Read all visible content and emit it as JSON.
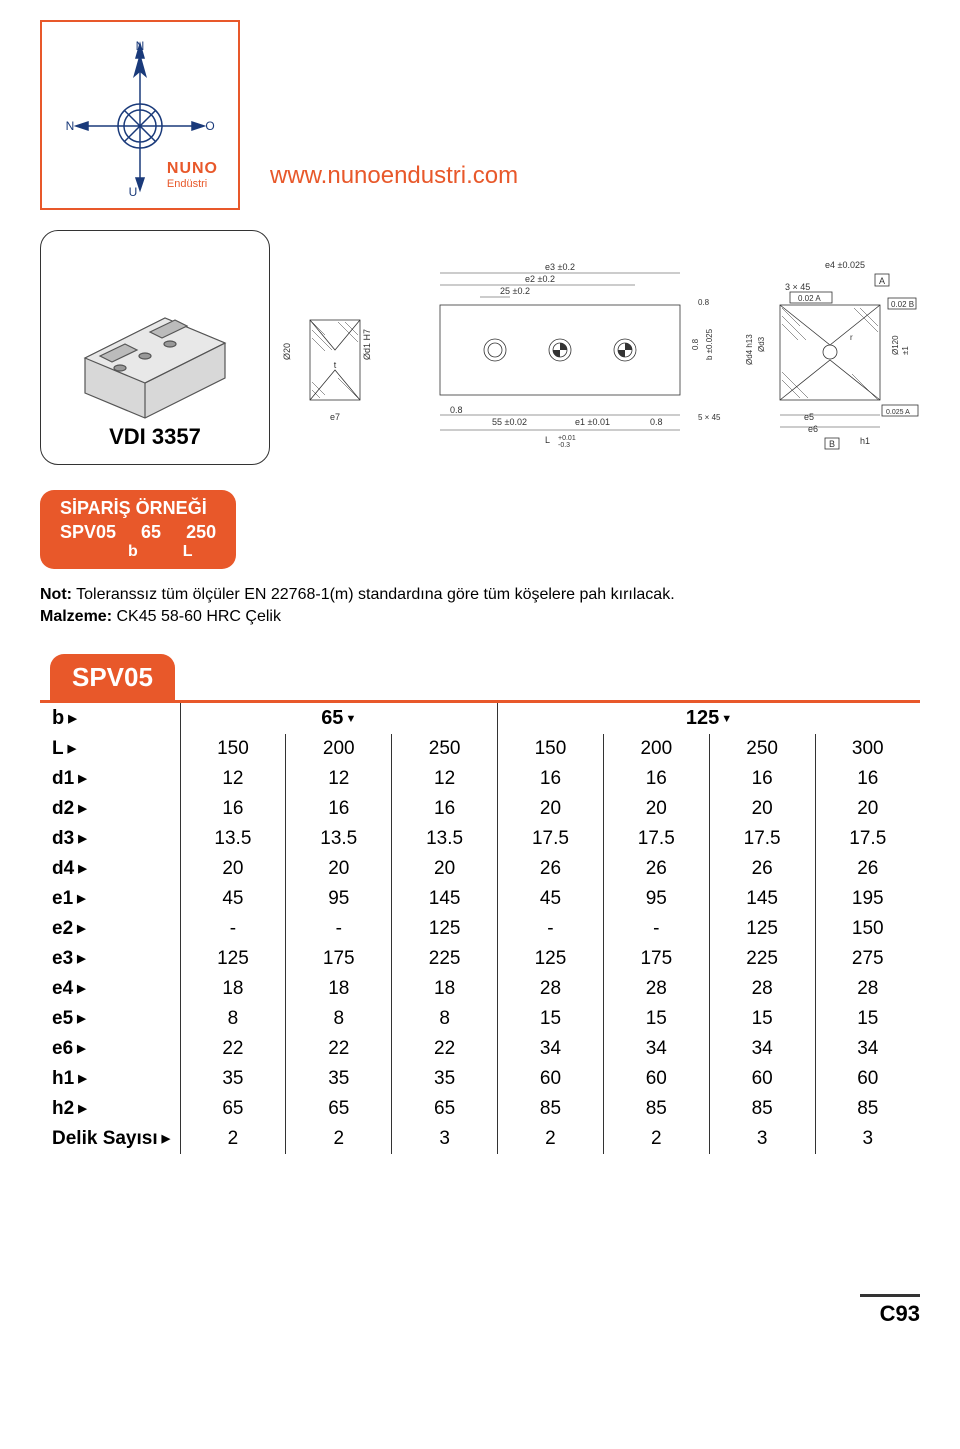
{
  "logo": {
    "brand": "NUNO",
    "sub": "Endüstri",
    "north": "N",
    "south": "U",
    "east": "O",
    "west": "N",
    "color": "#e8582a",
    "line_color": "#1a3a7a"
  },
  "website": "www.nunoendustri.com",
  "vdi_label": "VDI 3357",
  "drawing_labels": {
    "e3": "e3 ±0.2",
    "e2": "e2 ±0.2",
    "t25": "25 ±0.2",
    "od1": "Ød1 H7",
    "o20": "Ø20",
    "t": "t",
    "e7": "e7",
    "p08": "0.8",
    "t55": "55 ±0.02",
    "e1": "e1 ±0.01",
    "L": "L",
    "Ltol": "+0.01\n-0.3",
    "t5x45": "5 × 45",
    "b": "b ±0.025",
    "e4": "e4 ±0.025",
    "t3x45": "3 × 45",
    "A": "A",
    "gA": "0.02 A",
    "gB": "0.02 B",
    "od3": "Ød3",
    "od4": "Ød4 h13",
    "r": "r",
    "o120": "Ø120",
    "pm1": "±1",
    "e5": "e5",
    "e6": "e6",
    "h1": "h1",
    "B": "B",
    "flatA": "0.025 A"
  },
  "order": {
    "title": "SİPARİŞ ÖRNEĞİ",
    "code": "SPV05",
    "v1": "65",
    "v2": "250",
    "k1": "b",
    "k2": "L"
  },
  "notes": {
    "line1_bold": "Not:",
    "line1_rest": " Toleranssız tüm ölçüler EN 22768-1(m) standardına göre tüm köşelere pah kırılacak.",
    "line2_bold": "Malzeme:",
    "line2_rest": " CK45 58-60 HRC Çelik"
  },
  "table": {
    "tab": "SPV05",
    "accent": "#e8582a",
    "border": "#333333",
    "b_label": "b",
    "groups": [
      "65",
      "125"
    ],
    "rows": [
      {
        "label": "L",
        "vals": [
          "150",
          "200",
          "250",
          "150",
          "200",
          "250",
          "300"
        ]
      },
      {
        "label": "d1",
        "vals": [
          "12",
          "12",
          "12",
          "16",
          "16",
          "16",
          "16"
        ]
      },
      {
        "label": "d2",
        "vals": [
          "16",
          "16",
          "16",
          "20",
          "20",
          "20",
          "20"
        ]
      },
      {
        "label": "d3",
        "vals": [
          "13.5",
          "13.5",
          "13.5",
          "17.5",
          "17.5",
          "17.5",
          "17.5"
        ]
      },
      {
        "label": "d4",
        "vals": [
          "20",
          "20",
          "20",
          "26",
          "26",
          "26",
          "26"
        ]
      },
      {
        "label": "e1",
        "vals": [
          "45",
          "95",
          "145",
          "45",
          "95",
          "145",
          "195"
        ]
      },
      {
        "label": "e2",
        "vals": [
          "-",
          "-",
          "125",
          "-",
          "-",
          "125",
          "150"
        ]
      },
      {
        "label": "e3",
        "vals": [
          "125",
          "175",
          "225",
          "125",
          "175",
          "225",
          "275"
        ]
      },
      {
        "label": "e4",
        "vals": [
          "18",
          "18",
          "18",
          "28",
          "28",
          "28",
          "28"
        ]
      },
      {
        "label": "e5",
        "vals": [
          "8",
          "8",
          "8",
          "15",
          "15",
          "15",
          "15"
        ]
      },
      {
        "label": "e6",
        "vals": [
          "22",
          "22",
          "22",
          "34",
          "34",
          "34",
          "34"
        ]
      },
      {
        "label": "h1",
        "vals": [
          "35",
          "35",
          "35",
          "60",
          "60",
          "60",
          "60"
        ]
      },
      {
        "label": "h2",
        "vals": [
          "65",
          "65",
          "65",
          "85",
          "85",
          "85",
          "85"
        ]
      },
      {
        "label": "Delik Sayısı",
        "vals": [
          "2",
          "2",
          "3",
          "2",
          "2",
          "3",
          "3"
        ]
      }
    ]
  },
  "page_num": "C93"
}
